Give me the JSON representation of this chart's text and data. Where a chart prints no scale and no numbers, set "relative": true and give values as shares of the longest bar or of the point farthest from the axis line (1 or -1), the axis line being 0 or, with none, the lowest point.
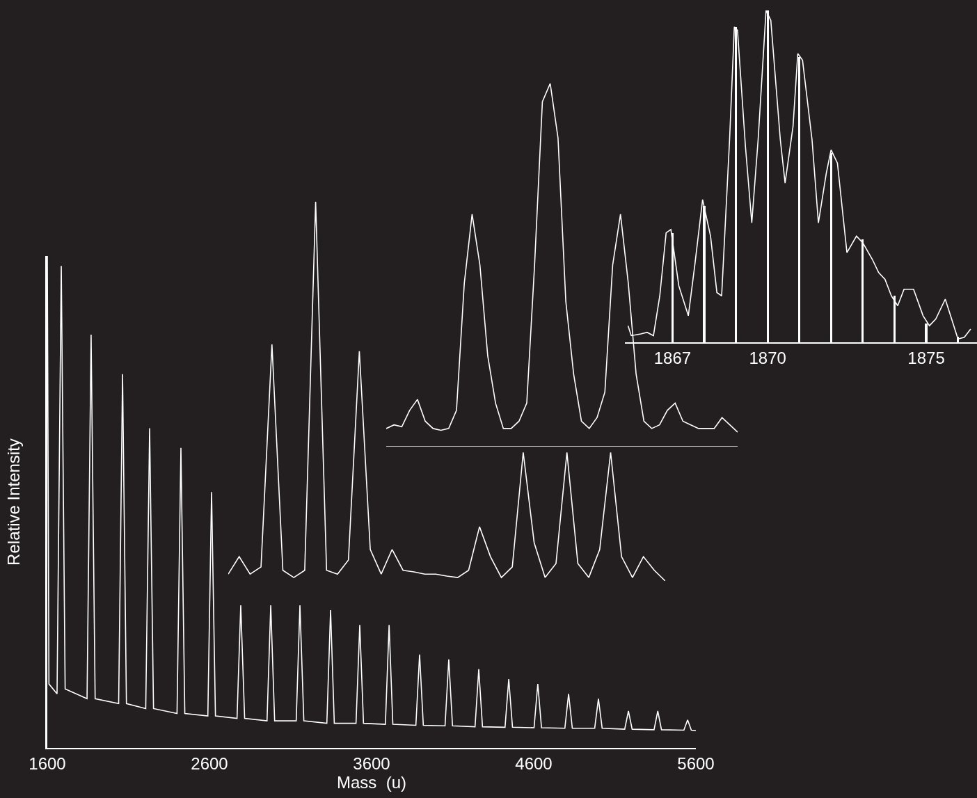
{
  "chart_data": [
    {
      "type": "line",
      "xlabel": "Mass  (u)",
      "ylabel": "Relative Intensity",
      "relative": true,
      "tick_labels": "x",
      "color": "#ffffff",
      "xlim": [
        1600,
        5600
      ],
      "xticks": [
        1600,
        2600,
        3600,
        4600,
        5600
      ],
      "x": [
        1600,
        1610,
        1660,
        1686,
        1710,
        1845,
        1870,
        1895,
        2040,
        2064,
        2088,
        2207,
        2231,
        2255,
        2400,
        2424,
        2448,
        2590,
        2613,
        2637,
        2770,
        2793,
        2817,
        2955,
        2978,
        3002,
        3135,
        3158,
        3182,
        3324,
        3347,
        3370,
        3504,
        3527,
        3550,
        3685,
        3708,
        3731,
        3873,
        3896,
        3919,
        4053,
        4076,
        4099,
        4238,
        4261,
        4284,
        4423,
        4446,
        4469,
        4602,
        4625,
        4648,
        4792,
        4815,
        4838,
        4976,
        4999,
        5022,
        5161,
        5184,
        5207,
        5342,
        5365,
        5388,
        5526,
        5549,
        5572,
        5600
      ],
      "values": [
        1.0,
        0.13,
        0.11,
        0.98,
        0.12,
        0.1,
        0.84,
        0.1,
        0.09,
        0.76,
        0.09,
        0.08,
        0.65,
        0.08,
        0.07,
        0.61,
        0.07,
        0.065,
        0.52,
        0.065,
        0.06,
        0.29,
        0.06,
        0.055,
        0.29,
        0.055,
        0.055,
        0.29,
        0.055,
        0.05,
        0.28,
        0.05,
        0.05,
        0.25,
        0.05,
        0.048,
        0.25,
        0.048,
        0.046,
        0.19,
        0.046,
        0.045,
        0.18,
        0.045,
        0.043,
        0.16,
        0.043,
        0.042,
        0.14,
        0.042,
        0.041,
        0.13,
        0.041,
        0.04,
        0.11,
        0.04,
        0.04,
        0.1,
        0.04,
        0.038,
        0.075,
        0.038,
        0.037,
        0.075,
        0.037,
        0.036,
        0.057,
        0.036,
        0.035
      ]
    },
    {
      "type": "line",
      "relative": true,
      "tick_labels": false,
      "color": "#ffffff",
      "categories": [
        null,
        null,
        null,
        null,
        null,
        null,
        null,
        null,
        null,
        null,
        null,
        null,
        null,
        null,
        null,
        null,
        null,
        null,
        null,
        null,
        null,
        null,
        null,
        null,
        null,
        null,
        null,
        null,
        null,
        null,
        null,
        null,
        null,
        null,
        null,
        null,
        null,
        null,
        null,
        null,
        null
      ],
      "values": [
        0.018,
        0.064,
        0.018,
        0.037,
        0.624,
        0.028,
        0.009,
        0.028,
        1.0,
        0.028,
        0.018,
        0.055,
        0.606,
        0.083,
        0.018,
        0.083,
        0.028,
        0.024,
        0.018,
        0.018,
        0.013,
        0.009,
        0.028,
        0.143,
        0.064,
        0.009,
        0.037,
        0.339,
        0.101,
        0.009,
        0.046,
        0.339,
        0.046,
        0.009,
        0.083,
        0.339,
        0.064,
        0.009,
        0.064,
        0.028,
        0.0
      ]
    },
    {
      "type": "line",
      "relative": true,
      "tick_labels": false,
      "color": "#ffffff",
      "ref_lines": [
        {
          "axis": "y",
          "value": 0,
          "color": "#ffffff"
        }
      ],
      "categories": [
        null,
        null,
        null,
        null,
        null,
        null,
        null,
        null,
        null,
        null,
        null,
        null,
        null,
        null,
        null,
        null,
        null,
        null,
        null,
        null,
        null,
        null,
        null,
        null,
        null,
        null,
        null,
        null,
        null,
        null,
        null,
        null,
        null,
        null,
        null,
        null,
        null,
        null,
        null,
        null,
        null,
        null,
        null,
        null,
        null,
        null
      ],
      "values": [
        0.05,
        0.06,
        0.055,
        0.1,
        0.13,
        0.07,
        0.05,
        0.045,
        0.05,
        0.1,
        0.45,
        0.64,
        0.5,
        0.25,
        0.12,
        0.05,
        0.05,
        0.07,
        0.12,
        0.5,
        0.95,
        1.0,
        0.85,
        0.4,
        0.2,
        0.07,
        0.05,
        0.08,
        0.15,
        0.5,
        0.64,
        0.45,
        0.2,
        0.07,
        0.05,
        0.06,
        0.1,
        0.12,
        0.07,
        0.06,
        0.05,
        0.05,
        0.05,
        0.08,
        0.06,
        0.04
      ]
    },
    {
      "type": "line",
      "relative": true,
      "tick_labels": "x",
      "xlim": [
        1865.5,
        1876.6
      ],
      "xticks": [
        1867,
        1870,
        1875
      ],
      "series": [
        {
          "type": "bar",
          "color": "#ffffff",
          "x": [
            1867,
            1868,
            1869,
            1870,
            1871,
            1872,
            1873,
            1874,
            1875,
            1876
          ],
          "values": [
            0.33,
            0.41,
            0.95,
            1.0,
            0.86,
            0.57,
            0.31,
            0.14,
            0.057,
            0.017
          ]
        },
        {
          "color": "#ffffff",
          "x": [
            1865.6,
            1865.7,
            1866.0,
            1866.2,
            1866.4,
            1866.6,
            1866.8,
            1866.95,
            1867.2,
            1867.5,
            1867.7,
            1867.95,
            1868.2,
            1868.4,
            1868.55,
            1868.8,
            1868.95,
            1869.05,
            1869.3,
            1869.5,
            1869.7,
            1869.95,
            1870.1,
            1870.4,
            1870.55,
            1870.8,
            1870.95,
            1871.1,
            1871.4,
            1871.6,
            1871.85,
            1872.0,
            1872.2,
            1872.5,
            1872.8,
            1873.0,
            1873.3,
            1873.5,
            1873.7,
            1873.9,
            1874.1,
            1874.3,
            1874.6,
            1874.9,
            1875.1,
            1875.3,
            1875.6,
            1875.8,
            1876.0,
            1876.2,
            1876.4
          ],
          "values": [
            0.05,
            0.02,
            0.025,
            0.03,
            0.02,
            0.14,
            0.33,
            0.34,
            0.17,
            0.08,
            0.23,
            0.43,
            0.32,
            0.15,
            0.14,
            0.61,
            0.95,
            0.94,
            0.59,
            0.36,
            0.61,
            1.0,
            0.97,
            0.61,
            0.48,
            0.65,
            0.87,
            0.85,
            0.61,
            0.36,
            0.51,
            0.58,
            0.54,
            0.27,
            0.32,
            0.3,
            0.25,
            0.21,
            0.19,
            0.14,
            0.11,
            0.16,
            0.16,
            0.08,
            0.05,
            0.07,
            0.13,
            0.07,
            0.01,
            0.015,
            0.04
          ]
        }
      ]
    }
  ]
}
